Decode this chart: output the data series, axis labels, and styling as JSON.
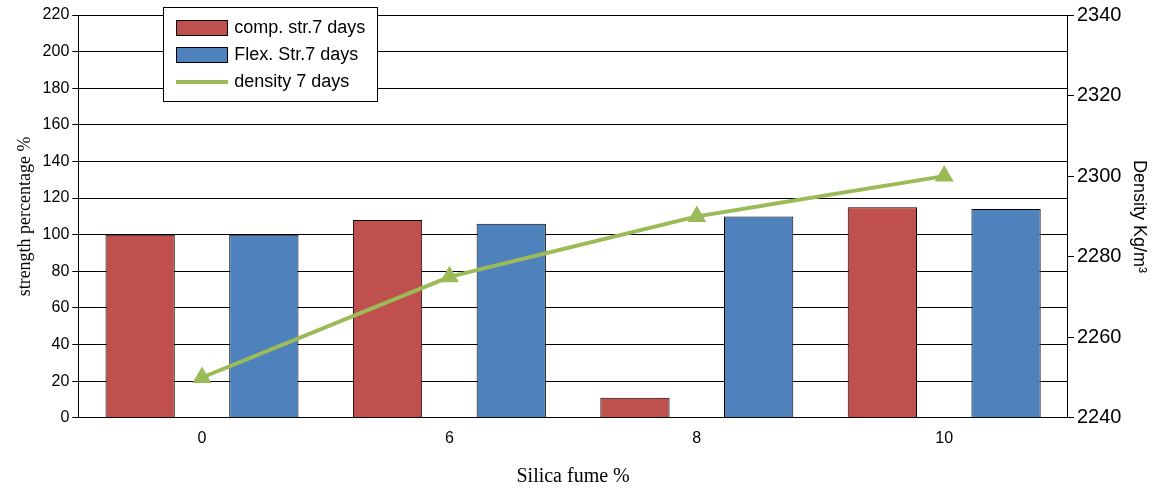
{
  "chart_data": {
    "type": "bar",
    "xlabel": "Silica fume %",
    "ylabel": "strength percentage %",
    "y2label": "Density Kg/m³",
    "categories": [
      "0",
      "6",
      "8",
      "10"
    ],
    "series": [
      {
        "name": "comp. str.7 days",
        "color": "#c0504d",
        "values": [
          100,
          108,
          11,
          115
        ]
      },
      {
        "name": "Flex. Str.7 days",
        "color": "#4f81bd",
        "values": [
          100,
          106,
          110,
          114
        ]
      },
      {
        "name": "density 7 days",
        "type": "line",
        "axis": "y2",
        "color": "#9bbb59",
        "marker": "triangle",
        "values": [
          2250,
          2275,
          2290,
          2300
        ]
      }
    ],
    "ylim": [
      0,
      220
    ],
    "yticks": [
      0,
      20,
      40,
      60,
      80,
      100,
      120,
      140,
      160,
      180,
      200,
      220
    ],
    "y2lim": [
      2240,
      2340
    ],
    "y2ticks": [
      2240,
      2260,
      2280,
      2300,
      2320,
      2340
    ],
    "grid": "y",
    "legend": "top left"
  }
}
